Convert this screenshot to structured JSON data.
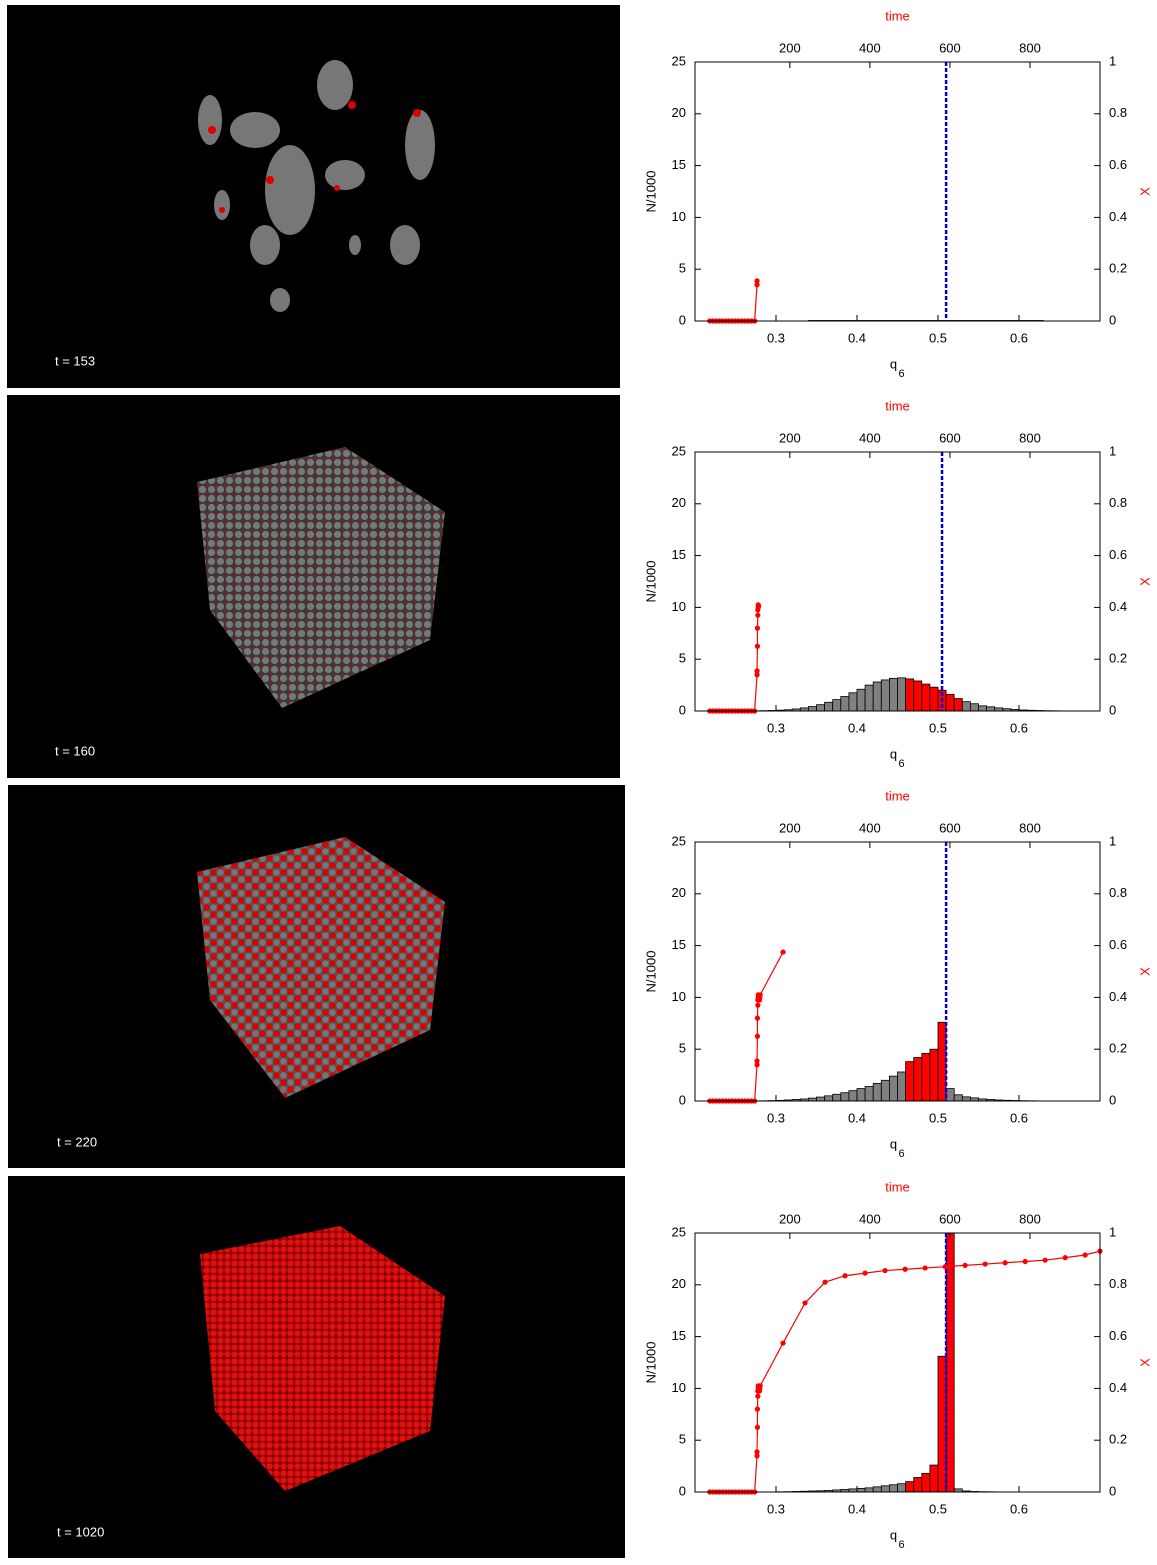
{
  "snapshots": [
    {
      "label": "t = 153"
    },
    {
      "label": "t = 160"
    },
    {
      "label": "t = 220"
    },
    {
      "label": "t = 1020"
    }
  ],
  "chart_data": [
    {
      "type": "histogram",
      "x_label": "q",
      "x_label_sub": "6",
      "y_label": "N/1000",
      "y2_label": "X",
      "x2_label": "time",
      "xlim": [
        0.2,
        0.7
      ],
      "xticks": [
        0.3,
        0.4,
        0.5,
        0.6
      ],
      "ylim": [
        0,
        25
      ],
      "yticks": [
        0,
        5,
        10,
        15,
        20,
        25
      ],
      "x2lim": [
        -37,
        975
      ],
      "x2ticks": [
        200,
        400,
        600,
        800
      ],
      "y2lim": [
        0,
        1
      ],
      "y2ticks": [
        0,
        0.2,
        0.4,
        0.6,
        0.8,
        1
      ],
      "bins": [
        0.28,
        0.29,
        0.3,
        0.31,
        0.32,
        0.33,
        0.34,
        0.35,
        0.36,
        0.37,
        0.38,
        0.39,
        0.4,
        0.41,
        0.42,
        0.43,
        0.44,
        0.45,
        0.46,
        0.47,
        0.48,
        0.49,
        0.5,
        0.51,
        0.52,
        0.53,
        0.54,
        0.55,
        0.56,
        0.57,
        0.58,
        0.59,
        0.6,
        0.61,
        0.62,
        0.63,
        0.64,
        0.65,
        0.66,
        0.67
      ],
      "counts": [
        0,
        0,
        0,
        0,
        0,
        0,
        0.05,
        0.05,
        0.05,
        0.05,
        0.05,
        0.05,
        0.05,
        0.05,
        0.05,
        0.05,
        0.05,
        0.05,
        0.05,
        0.05,
        0.05,
        0.05,
        0.05,
        0.05,
        0.05,
        0.05,
        0.05,
        0.05,
        0.05,
        0.05,
        0.05,
        0.05,
        0.05,
        0.05,
        0.05,
        0,
        0,
        0,
        0
      ],
      "colors": [
        "#808080",
        "#808080",
        "#808080",
        "#808080",
        "#808080",
        "#808080",
        "#808080",
        "#808080",
        "#808080",
        "#808080",
        "#808080",
        "#808080",
        "#808080",
        "#808080",
        "#808080",
        "#808080",
        "#808080",
        "#808080",
        "#808080",
        "#808080",
        "#808080",
        "#808080",
        "#808080",
        "#808080",
        "#808080",
        "#808080",
        "#808080",
        "#808080",
        "#808080",
        "#808080",
        "#808080",
        "#808080",
        "#808080",
        "#808080",
        "#808080",
        "#808080",
        "#808080",
        "#808080",
        "#808080"
      ],
      "vline": 0.51,
      "vline_color": "#0000dd",
      "line": {
        "color": "#ff0000",
        "axis": "y2",
        "x": [
          0,
          8,
          16,
          24,
          32,
          40,
          48,
          56,
          64,
          72,
          80,
          88,
          96,
          104,
          112,
          118,
          118
        ],
        "values": [
          0,
          0,
          0,
          0,
          0,
          0,
          0,
          0,
          0,
          0,
          0,
          0,
          0,
          0,
          0,
          0.14,
          0.155
        ]
      }
    },
    {
      "type": "histogram",
      "x_label": "q",
      "x_label_sub": "6",
      "y_label": "N/1000",
      "y2_label": "X",
      "x2_label": "time",
      "xlim": [
        0.2,
        0.7
      ],
      "xticks": [
        0.3,
        0.4,
        0.5,
        0.6
      ],
      "ylim": [
        0,
        25
      ],
      "yticks": [
        0,
        5,
        10,
        15,
        20,
        25
      ],
      "x2lim": [
        -37,
        975
      ],
      "x2ticks": [
        200,
        400,
        600,
        800
      ],
      "y2lim": [
        0,
        1
      ],
      "y2ticks": [
        0,
        0.2,
        0.4,
        0.6,
        0.8,
        1
      ],
      "bins": [
        0.28,
        0.29,
        0.3,
        0.31,
        0.32,
        0.33,
        0.34,
        0.35,
        0.36,
        0.37,
        0.38,
        0.39,
        0.4,
        0.41,
        0.42,
        0.43,
        0.44,
        0.45,
        0.46,
        0.47,
        0.48,
        0.49,
        0.5,
        0.51,
        0.52,
        0.53,
        0.54,
        0.55,
        0.56,
        0.57,
        0.58,
        0.59,
        0.6,
        0.61,
        0.62,
        0.63,
        0.64,
        0.65,
        0.66,
        0.67
      ],
      "counts": [
        0.03,
        0.05,
        0.08,
        0.12,
        0.2,
        0.3,
        0.43,
        0.61,
        0.84,
        1.1,
        1.4,
        1.76,
        2.1,
        2.5,
        2.8,
        3.0,
        3.15,
        3.2,
        3.1,
        2.9,
        2.6,
        2.3,
        2.0,
        1.6,
        1.2,
        0.9,
        0.7,
        0.5,
        0.4,
        0.3,
        0.22,
        0.15,
        0.1,
        0.07,
        0.05,
        0.03,
        0.02,
        0.01,
        0
      ],
      "colors": [
        "#808080",
        "#808080",
        "#808080",
        "#808080",
        "#808080",
        "#808080",
        "#808080",
        "#808080",
        "#808080",
        "#808080",
        "#808080",
        "#808080",
        "#808080",
        "#808080",
        "#808080",
        "#808080",
        "#808080",
        "#808080",
        "#ff0000",
        "#ff0000",
        "#ff0000",
        "#ff0000",
        "#ff0000",
        "#ff0000",
        "#ff0000",
        "#808080",
        "#808080",
        "#808080",
        "#808080",
        "#808080",
        "#808080",
        "#808080",
        "#808080",
        "#808080",
        "#808080",
        "#808080",
        "#808080",
        "#808080",
        "#808080"
      ],
      "vline": 0.505,
      "vline_color": "#0000dd",
      "line": {
        "color": "#ff0000",
        "axis": "y2",
        "x": [
          0,
          8,
          16,
          24,
          32,
          40,
          48,
          56,
          64,
          72,
          80,
          88,
          96,
          104,
          112,
          118,
          118,
          119,
          119,
          120,
          120,
          121,
          121,
          122
        ],
        "values": [
          0,
          0,
          0,
          0,
          0,
          0,
          0,
          0,
          0,
          0,
          0,
          0,
          0,
          0,
          0,
          0.14,
          0.155,
          0.25,
          0.32,
          0.37,
          0.39,
          0.41,
          0.4,
          0.405
        ]
      }
    },
    {
      "type": "histogram",
      "x_label": "q",
      "x_label_sub": "6",
      "y_label": "N/1000",
      "y2_label": "X",
      "x2_label": "time",
      "xlim": [
        0.2,
        0.7
      ],
      "xticks": [
        0.3,
        0.4,
        0.5,
        0.6
      ],
      "ylim": [
        0,
        25
      ],
      "yticks": [
        0,
        5,
        10,
        15,
        20,
        25
      ],
      "x2lim": [
        -37,
        975
      ],
      "x2ticks": [
        200,
        400,
        600,
        800
      ],
      "y2lim": [
        0,
        1
      ],
      "y2ticks": [
        0,
        0.2,
        0.4,
        0.6,
        0.8,
        1
      ],
      "bins": [
        0.28,
        0.29,
        0.3,
        0.31,
        0.32,
        0.33,
        0.34,
        0.35,
        0.36,
        0.37,
        0.38,
        0.39,
        0.4,
        0.41,
        0.42,
        0.43,
        0.44,
        0.45,
        0.46,
        0.47,
        0.48,
        0.49,
        0.5,
        0.51,
        0.52,
        0.53,
        0.54,
        0.55,
        0.56,
        0.57,
        0.58,
        0.59,
        0.6,
        0.61,
        0.62,
        0.63,
        0.64,
        0.65,
        0.66,
        0.67
      ],
      "counts": [
        0.02,
        0.04,
        0.06,
        0.1,
        0.15,
        0.2,
        0.28,
        0.38,
        0.5,
        0.65,
        0.8,
        1.0,
        1.2,
        1.4,
        1.7,
        2.0,
        2.4,
        2.8,
        3.8,
        4.2,
        4.6,
        5.0,
        7.6,
        1.2,
        0.6,
        0.4,
        0.3,
        0.2,
        0.15,
        0.1,
        0.07,
        0.05,
        0.03,
        0.02,
        0,
        0,
        0,
        0,
        0
      ],
      "colors": [
        "#808080",
        "#808080",
        "#808080",
        "#808080",
        "#808080",
        "#808080",
        "#808080",
        "#808080",
        "#808080",
        "#808080",
        "#808080",
        "#808080",
        "#808080",
        "#808080",
        "#808080",
        "#808080",
        "#808080",
        "#808080",
        "#ff0000",
        "#ff0000",
        "#ff0000",
        "#ff0000",
        "#ff0000",
        "#808080",
        "#808080",
        "#808080",
        "#808080",
        "#808080",
        "#808080",
        "#808080",
        "#808080",
        "#808080",
        "#808080",
        "#808080",
        "#808080",
        "#808080",
        "#808080",
        "#808080",
        "#808080"
      ],
      "vline": 0.51,
      "vline_color": "#0000dd",
      "line": {
        "color": "#ff0000",
        "axis": "y2",
        "x": [
          0,
          8,
          16,
          24,
          32,
          40,
          48,
          56,
          64,
          72,
          80,
          88,
          96,
          104,
          112,
          118,
          118,
          119,
          119,
          120,
          120,
          121,
          121,
          122,
          123,
          124,
          125,
          126,
          183
        ],
        "values": [
          0,
          0,
          0,
          0,
          0,
          0,
          0,
          0,
          0,
          0,
          0,
          0,
          0,
          0,
          0,
          0.14,
          0.155,
          0.25,
          0.32,
          0.37,
          0.39,
          0.41,
          0.4,
          0.405,
          0.4,
          0.39,
          0.4,
          0.41,
          0.575
        ]
      }
    },
    {
      "type": "histogram",
      "x_label": "q",
      "x_label_sub": "6",
      "y_label": "N/1000",
      "y2_label": "X",
      "x2_label": "time",
      "xlim": [
        0.2,
        0.7
      ],
      "xticks": [
        0.3,
        0.4,
        0.5,
        0.6
      ],
      "ylim": [
        0,
        25
      ],
      "yticks": [
        0,
        5,
        10,
        15,
        20,
        25
      ],
      "x2lim": [
        -37,
        975
      ],
      "x2ticks": [
        200,
        400,
        600,
        800
      ],
      "y2lim": [
        0,
        1
      ],
      "y2ticks": [
        0,
        0.2,
        0.4,
        0.6,
        0.8,
        1
      ],
      "bins": [
        0.28,
        0.29,
        0.3,
        0.31,
        0.32,
        0.33,
        0.34,
        0.35,
        0.36,
        0.37,
        0.38,
        0.39,
        0.4,
        0.41,
        0.42,
        0.43,
        0.44,
        0.45,
        0.46,
        0.47,
        0.48,
        0.49,
        0.5,
        0.51,
        0.52,
        0.53,
        0.54,
        0.55,
        0.56,
        0.57,
        0.58,
        0.59,
        0.6,
        0.61,
        0.62,
        0.63,
        0.64,
        0.65,
        0.66,
        0.67
      ],
      "counts": [
        0,
        0,
        0.02,
        0.03,
        0.05,
        0.07,
        0.1,
        0.12,
        0.15,
        0.2,
        0.25,
        0.3,
        0.35,
        0.4,
        0.5,
        0.6,
        0.7,
        0.8,
        1.0,
        1.4,
        1.8,
        2.6,
        13.1,
        27,
        0.3,
        0.1,
        0.05,
        0.03,
        0.02,
        0,
        0,
        0,
        0,
        0,
        0,
        0,
        0,
        0,
        0
      ],
      "colors": [
        "#808080",
        "#808080",
        "#808080",
        "#808080",
        "#808080",
        "#808080",
        "#808080",
        "#808080",
        "#808080",
        "#808080",
        "#808080",
        "#808080",
        "#808080",
        "#808080",
        "#808080",
        "#808080",
        "#808080",
        "#808080",
        "#ff0000",
        "#ff0000",
        "#ff0000",
        "#ff0000",
        "#ff0000",
        "#ff0000",
        "#808080",
        "#808080",
        "#808080",
        "#808080",
        "#808080",
        "#808080",
        "#808080",
        "#808080",
        "#808080",
        "#808080",
        "#808080",
        "#808080",
        "#808080",
        "#808080",
        "#808080"
      ],
      "vline": 0.51,
      "vline_color": "#0000dd",
      "line": {
        "color": "#ff0000",
        "axis": "y2",
        "x": [
          0,
          8,
          16,
          24,
          32,
          40,
          48,
          56,
          64,
          72,
          80,
          88,
          96,
          104,
          112,
          118,
          118,
          119,
          119,
          120,
          120,
          121,
          121,
          122,
          123,
          124,
          125,
          126,
          183,
          238,
          288,
          338,
          388,
          438,
          488,
          538,
          588,
          638,
          688,
          738,
          788,
          838,
          888,
          938,
          975
        ],
        "values": [
          0,
          0,
          0,
          0,
          0,
          0,
          0,
          0,
          0,
          0,
          0,
          0,
          0,
          0,
          0,
          0.14,
          0.155,
          0.25,
          0.32,
          0.37,
          0.39,
          0.41,
          0.4,
          0.405,
          0.4,
          0.39,
          0.4,
          0.41,
          0.575,
          0.73,
          0.81,
          0.835,
          0.845,
          0.855,
          0.86,
          0.865,
          0.87,
          0.875,
          0.88,
          0.885,
          0.89,
          0.895,
          0.905,
          0.915,
          0.93
        ]
      }
    }
  ]
}
